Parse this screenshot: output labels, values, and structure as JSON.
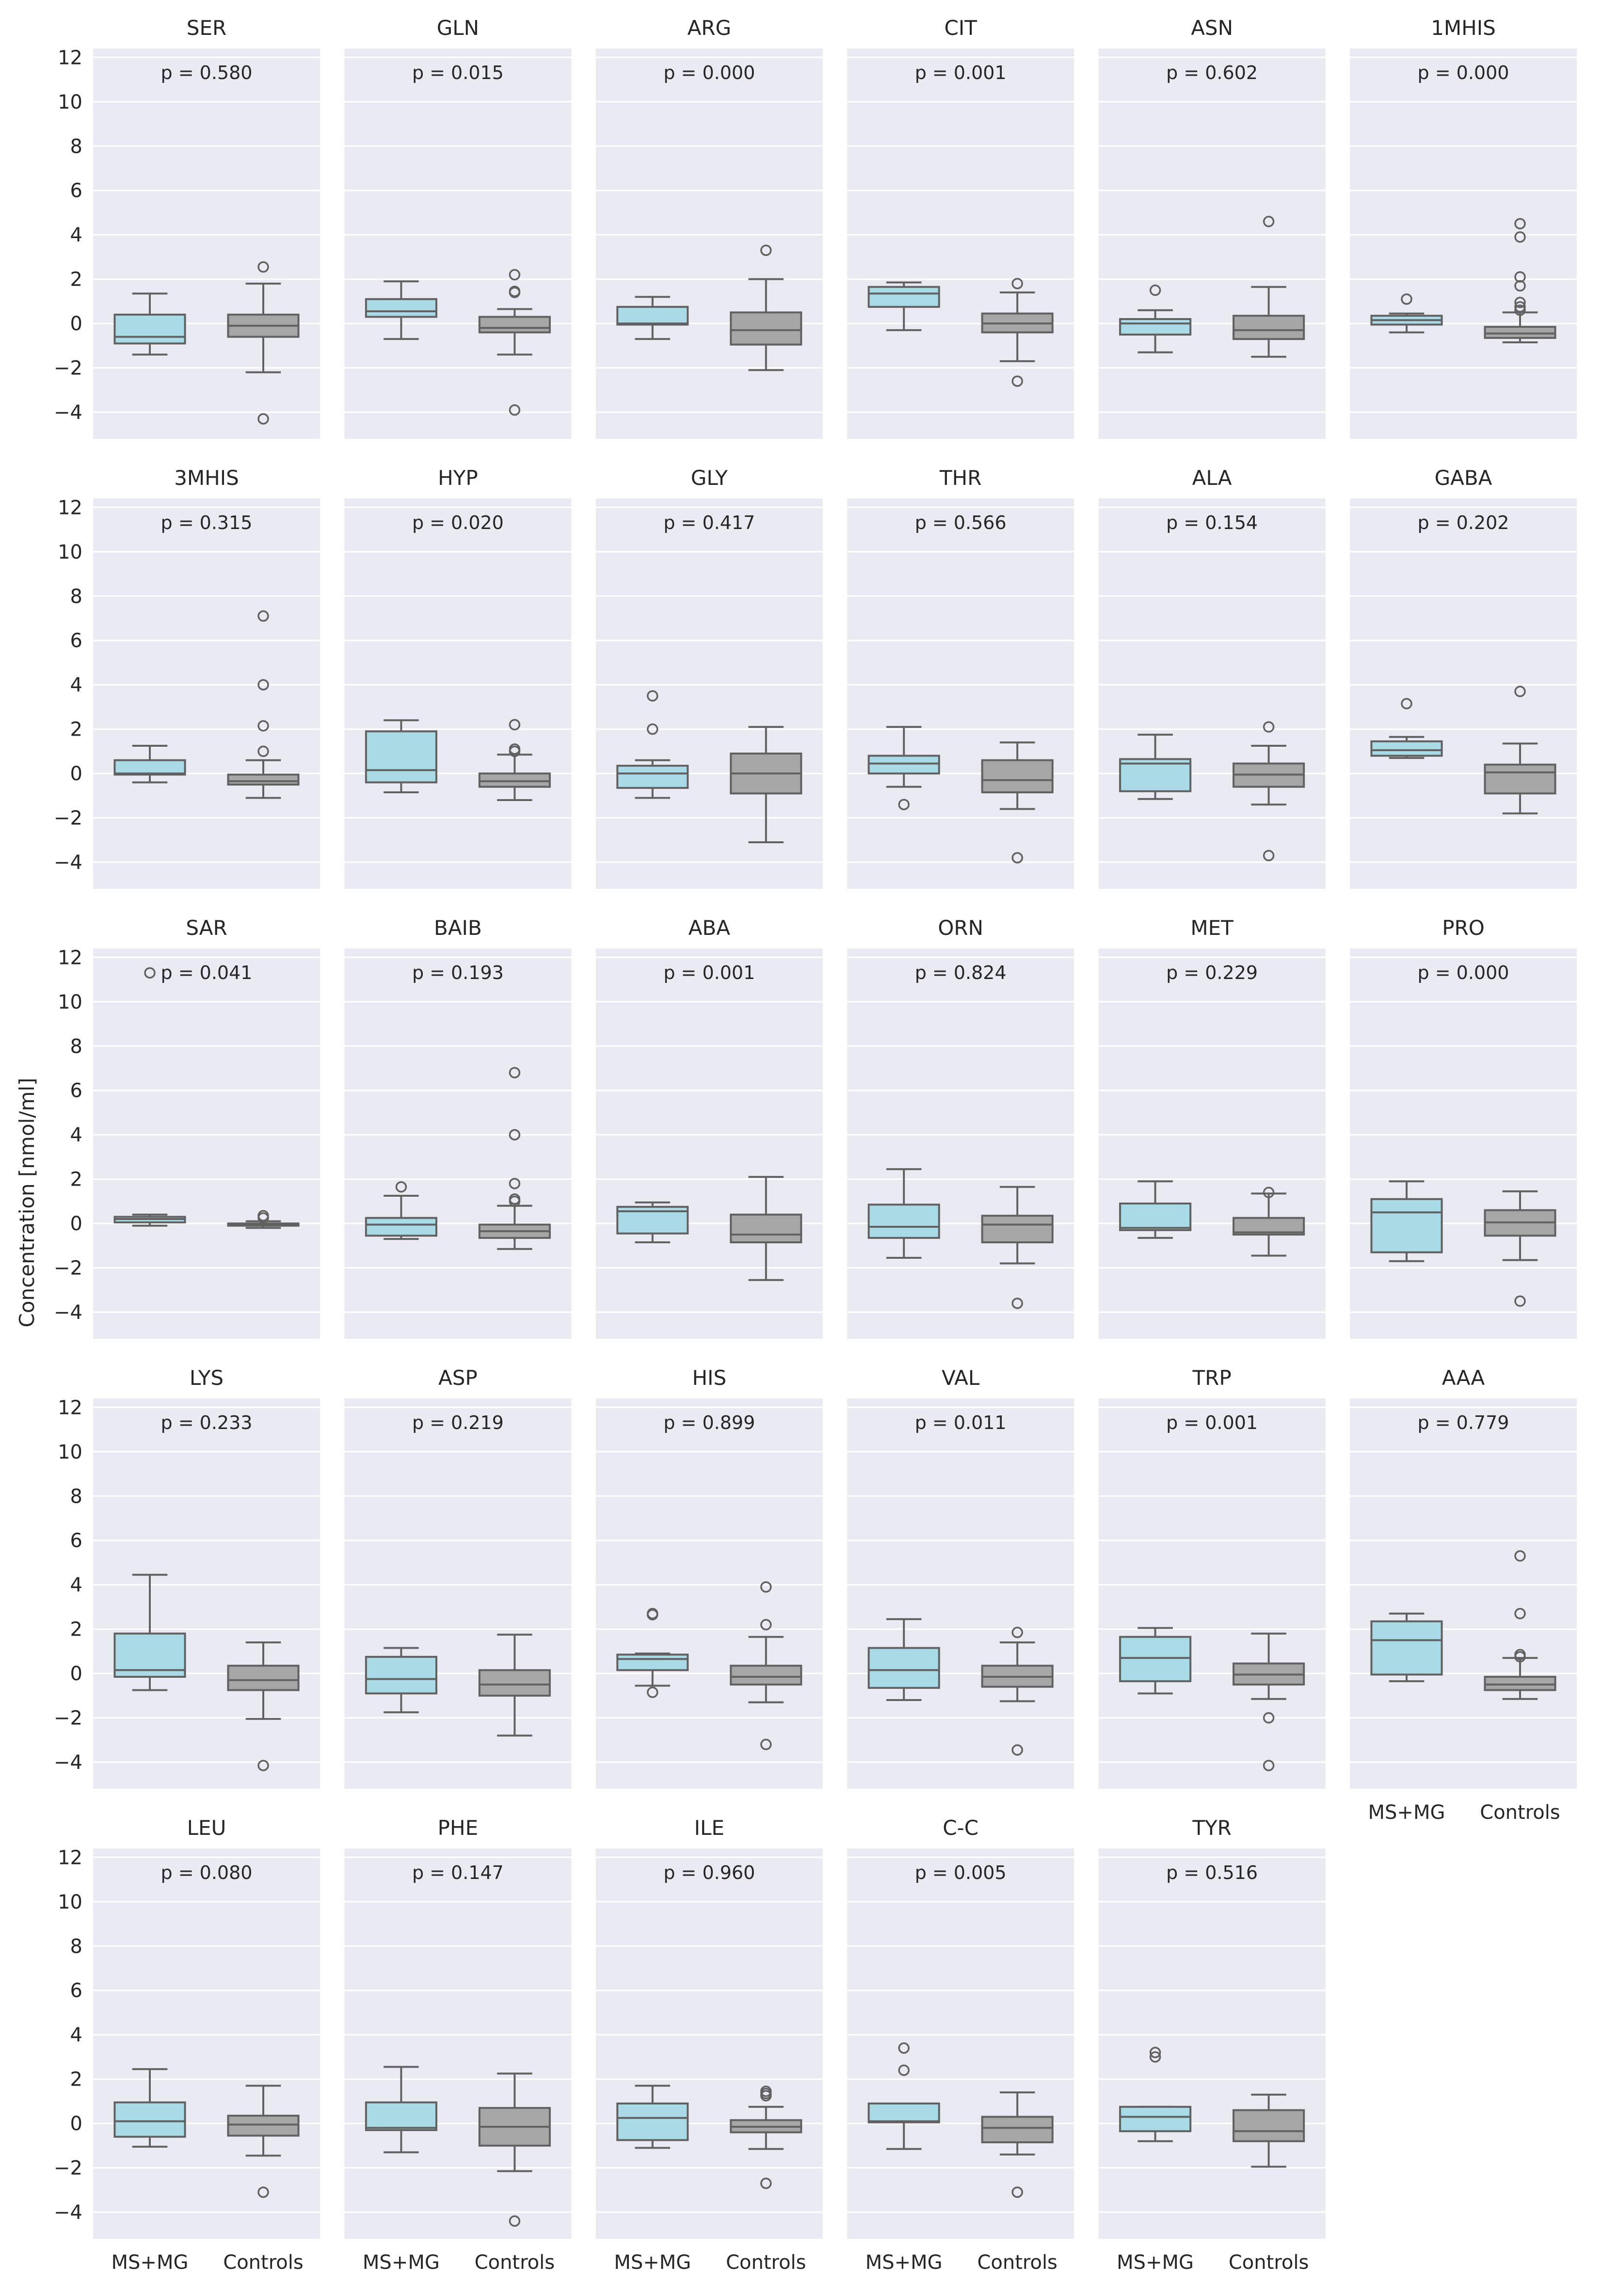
{
  "chart_data": {
    "type": "box",
    "ylabel": "Concentration [nmol/ml]",
    "ylim": [
      -5.2,
      12.4
    ],
    "yticks": [
      -4,
      -2,
      0,
      2,
      4,
      6,
      8,
      10,
      12
    ],
    "groups": [
      "MS+MG",
      "Controls"
    ],
    "colors": {
      "MS+MG": "#a9dbe6",
      "Controls": "#a6a6a6",
      "background": "#eaeaf2",
      "edge": "#616161"
    },
    "grid": true,
    "panels": [
      {
        "name": "SER",
        "p": "p = 0.580",
        "boxes": [
          {
            "group": "MS+MG",
            "whislo": -1.4,
            "q1": -0.9,
            "med": -0.6,
            "q3": 0.4,
            "whishi": 1.35,
            "fliers": []
          },
          {
            "group": "Controls",
            "whislo": -2.2,
            "q1": -0.6,
            "med": -0.1,
            "q3": 0.4,
            "whishi": 1.8,
            "fliers": [
              2.55,
              -4.3
            ]
          }
        ]
      },
      {
        "name": "GLN",
        "p": "p = 0.015",
        "boxes": [
          {
            "group": "MS+MG",
            "whislo": -0.7,
            "q1": 0.3,
            "med": 0.55,
            "q3": 1.1,
            "whishi": 1.9,
            "fliers": []
          },
          {
            "group": "Controls",
            "whislo": -1.4,
            "q1": -0.4,
            "med": -0.2,
            "q3": 0.3,
            "whishi": 0.65,
            "fliers": [
              2.2,
              1.45,
              1.4,
              -3.9
            ]
          }
        ]
      },
      {
        "name": "ARG",
        "p": "p = 0.000",
        "boxes": [
          {
            "group": "MS+MG",
            "whislo": -0.7,
            "q1": -0.05,
            "med": 0.0,
            "q3": 0.75,
            "whishi": 1.2,
            "fliers": []
          },
          {
            "group": "Controls",
            "whislo": -2.1,
            "q1": -0.95,
            "med": -0.3,
            "q3": 0.5,
            "whishi": 2.0,
            "fliers": [
              3.3
            ]
          }
        ]
      },
      {
        "name": "CIT",
        "p": "p = 0.001",
        "boxes": [
          {
            "group": "MS+MG",
            "whislo": -0.3,
            "q1": 0.75,
            "med": 1.35,
            "q3": 1.65,
            "whishi": 1.85,
            "fliers": []
          },
          {
            "group": "Controls",
            "whislo": -1.7,
            "q1": -0.4,
            "med": 0.0,
            "q3": 0.45,
            "whishi": 1.4,
            "fliers": [
              1.8,
              -2.6
            ]
          }
        ]
      },
      {
        "name": "ASN",
        "p": "p = 0.602",
        "boxes": [
          {
            "group": "MS+MG",
            "whislo": -1.3,
            "q1": -0.5,
            "med": 0.0,
            "q3": 0.2,
            "whishi": 0.6,
            "fliers": [
              1.5
            ]
          },
          {
            "group": "Controls",
            "whislo": -1.5,
            "q1": -0.7,
            "med": -0.3,
            "q3": 0.35,
            "whishi": 1.65,
            "fliers": [
              4.6
            ]
          }
        ]
      },
      {
        "name": "1MHIS",
        "p": "p = 0.000",
        "boxes": [
          {
            "group": "MS+MG",
            "whislo": -0.4,
            "q1": -0.05,
            "med": 0.15,
            "q3": 0.35,
            "whishi": 0.45,
            "fliers": [
              1.1
            ]
          },
          {
            "group": "Controls",
            "whislo": -0.85,
            "q1": -0.65,
            "med": -0.45,
            "q3": -0.15,
            "whishi": 0.5,
            "fliers": [
              4.5,
              3.9,
              2.1,
              1.7,
              0.95,
              0.75,
              0.6
            ]
          }
        ]
      },
      {
        "name": "3MHIS",
        "p": "p = 0.315",
        "boxes": [
          {
            "group": "MS+MG",
            "whislo": -0.4,
            "q1": -0.05,
            "med": 0.0,
            "q3": 0.6,
            "whishi": 1.25,
            "fliers": []
          },
          {
            "group": "Controls",
            "whislo": -1.1,
            "q1": -0.5,
            "med": -0.35,
            "q3": -0.05,
            "whishi": 0.6,
            "fliers": [
              7.1,
              4.0,
              2.15,
              1.0
            ]
          }
        ]
      },
      {
        "name": "HYP",
        "p": "p = 0.020",
        "boxes": [
          {
            "group": "MS+MG",
            "whislo": -0.85,
            "q1": -0.4,
            "med": 0.15,
            "q3": 1.9,
            "whishi": 2.4,
            "fliers": []
          },
          {
            "group": "Controls",
            "whislo": -1.2,
            "q1": -0.6,
            "med": -0.35,
            "q3": 0.0,
            "whishi": 0.85,
            "fliers": [
              2.2,
              1.1,
              1.0
            ]
          }
        ]
      },
      {
        "name": "GLY",
        "p": "p = 0.417",
        "boxes": [
          {
            "group": "MS+MG",
            "whislo": -1.1,
            "q1": -0.65,
            "med": 0.0,
            "q3": 0.35,
            "whishi": 0.6,
            "fliers": [
              3.5,
              2.0
            ]
          },
          {
            "group": "Controls",
            "whislo": -3.1,
            "q1": -0.9,
            "med": 0.0,
            "q3": 0.9,
            "whishi": 2.1,
            "fliers": []
          }
        ]
      },
      {
        "name": "THR",
        "p": "p = 0.566",
        "boxes": [
          {
            "group": "MS+MG",
            "whislo": -0.6,
            "q1": 0.0,
            "med": 0.45,
            "q3": 0.8,
            "whishi": 2.1,
            "fliers": [
              -1.4
            ]
          },
          {
            "group": "Controls",
            "whislo": -1.6,
            "q1": -0.85,
            "med": -0.3,
            "q3": 0.6,
            "whishi": 1.4,
            "fliers": [
              -3.8
            ]
          }
        ]
      },
      {
        "name": "ALA",
        "p": "p = 0.154",
        "boxes": [
          {
            "group": "MS+MG",
            "whislo": -1.15,
            "q1": -0.8,
            "med": 0.45,
            "q3": 0.65,
            "whishi": 1.75,
            "fliers": []
          },
          {
            "group": "Controls",
            "whislo": -1.4,
            "q1": -0.6,
            "med": -0.05,
            "q3": 0.45,
            "whishi": 1.25,
            "fliers": [
              2.1,
              -3.7
            ]
          }
        ]
      },
      {
        "name": "GABA",
        "p": "p = 0.202",
        "boxes": [
          {
            "group": "MS+MG",
            "whislo": 0.7,
            "q1": 0.8,
            "med": 1.05,
            "q3": 1.45,
            "whishi": 1.65,
            "fliers": [
              3.15
            ]
          },
          {
            "group": "Controls",
            "whislo": -1.8,
            "q1": -0.9,
            "med": 0.05,
            "q3": 0.4,
            "whishi": 1.35,
            "fliers": [
              3.7
            ]
          }
        ]
      },
      {
        "name": "SAR",
        "p": "p = 0.041",
        "boxes": [
          {
            "group": "MS+MG",
            "whislo": -0.1,
            "q1": 0.05,
            "med": 0.2,
            "q3": 0.3,
            "whishi": 0.4,
            "fliers": [
              11.3
            ]
          },
          {
            "group": "Controls",
            "whislo": -0.2,
            "q1": -0.1,
            "med": -0.05,
            "q3": 0.0,
            "whishi": 0.1,
            "fliers": [
              0.35,
              0.25
            ]
          }
        ]
      },
      {
        "name": "BAIB",
        "p": "p = 0.193",
        "boxes": [
          {
            "group": "MS+MG",
            "whislo": -0.7,
            "q1": -0.55,
            "med": -0.05,
            "q3": 0.25,
            "whishi": 1.25,
            "fliers": [
              1.65
            ]
          },
          {
            "group": "Controls",
            "whislo": -1.15,
            "q1": -0.65,
            "med": -0.35,
            "q3": -0.05,
            "whishi": 0.8,
            "fliers": [
              6.8,
              4.0,
              1.8,
              1.1,
              1.0
            ]
          }
        ]
      },
      {
        "name": "ABA",
        "p": "p = 0.001",
        "boxes": [
          {
            "group": "MS+MG",
            "whislo": -0.85,
            "q1": -0.45,
            "med": 0.55,
            "q3": 0.75,
            "whishi": 0.95,
            "fliers": []
          },
          {
            "group": "Controls",
            "whislo": -2.55,
            "q1": -0.85,
            "med": -0.5,
            "q3": 0.4,
            "whishi": 2.1,
            "fliers": []
          }
        ]
      },
      {
        "name": "ORN",
        "p": "p = 0.824",
        "boxes": [
          {
            "group": "MS+MG",
            "whislo": -1.55,
            "q1": -0.65,
            "med": -0.15,
            "q3": 0.85,
            "whishi": 2.45,
            "fliers": []
          },
          {
            "group": "Controls",
            "whislo": -1.8,
            "q1": -0.85,
            "med": -0.05,
            "q3": 0.35,
            "whishi": 1.65,
            "fliers": [
              -3.6
            ]
          }
        ]
      },
      {
        "name": "MET",
        "p": "p = 0.229",
        "boxes": [
          {
            "group": "MS+MG",
            "whislo": -0.65,
            "q1": -0.3,
            "med": -0.2,
            "q3": 0.9,
            "whishi": 1.9,
            "fliers": []
          },
          {
            "group": "Controls",
            "whislo": -1.45,
            "q1": -0.5,
            "med": -0.4,
            "q3": 0.25,
            "whishi": 1.35,
            "fliers": [
              1.4
            ]
          }
        ]
      },
      {
        "name": "PRO",
        "p": "p = 0.000",
        "boxes": [
          {
            "group": "MS+MG",
            "whislo": -1.7,
            "q1": -1.3,
            "med": 0.5,
            "q3": 1.1,
            "whishi": 1.9,
            "fliers": []
          },
          {
            "group": "Controls",
            "whislo": -1.65,
            "q1": -0.55,
            "med": 0.05,
            "q3": 0.6,
            "whishi": 1.45,
            "fliers": [
              -3.5
            ]
          }
        ]
      },
      {
        "name": "LYS",
        "p": "p = 0.233",
        "boxes": [
          {
            "group": "MS+MG",
            "whislo": -0.75,
            "q1": -0.15,
            "med": 0.15,
            "q3": 1.8,
            "whishi": 4.45,
            "fliers": []
          },
          {
            "group": "Controls",
            "whislo": -2.05,
            "q1": -0.75,
            "med": -0.3,
            "q3": 0.35,
            "whishi": 1.4,
            "fliers": [
              -4.15
            ]
          }
        ]
      },
      {
        "name": "ASP",
        "p": "p = 0.219",
        "boxes": [
          {
            "group": "MS+MG",
            "whislo": -1.75,
            "q1": -0.9,
            "med": -0.25,
            "q3": 0.75,
            "whishi": 1.15,
            "fliers": []
          },
          {
            "group": "Controls",
            "whislo": -2.8,
            "q1": -1.0,
            "med": -0.5,
            "q3": 0.15,
            "whishi": 1.75,
            "fliers": []
          }
        ]
      },
      {
        "name": "HIS",
        "p": "p = 0.899",
        "boxes": [
          {
            "group": "MS+MG",
            "whislo": -0.55,
            "q1": 0.15,
            "med": 0.65,
            "q3": 0.85,
            "whishi": 0.9,
            "fliers": [
              2.7,
              2.65,
              -0.85
            ]
          },
          {
            "group": "Controls",
            "whislo": -1.3,
            "q1": -0.5,
            "med": -0.15,
            "q3": 0.35,
            "whishi": 1.65,
            "fliers": [
              3.9,
              2.2,
              -3.2
            ]
          }
        ]
      },
      {
        "name": "VAL",
        "p": "p = 0.011",
        "boxes": [
          {
            "group": "MS+MG",
            "whislo": -1.2,
            "q1": -0.65,
            "med": 0.15,
            "q3": 1.15,
            "whishi": 2.45,
            "fliers": []
          },
          {
            "group": "Controls",
            "whislo": -1.25,
            "q1": -0.6,
            "med": -0.15,
            "q3": 0.35,
            "whishi": 1.4,
            "fliers": [
              1.85,
              -3.45
            ]
          }
        ]
      },
      {
        "name": "TRP",
        "p": "p = 0.001",
        "boxes": [
          {
            "group": "MS+MG",
            "whislo": -0.9,
            "q1": -0.35,
            "med": 0.7,
            "q3": 1.65,
            "whishi": 2.05,
            "fliers": []
          },
          {
            "group": "Controls",
            "whislo": -1.15,
            "q1": -0.5,
            "med": -0.05,
            "q3": 0.45,
            "whishi": 1.8,
            "fliers": [
              -2.0,
              -4.15
            ]
          }
        ]
      },
      {
        "name": "AAA",
        "p": "p = 0.779",
        "boxes": [
          {
            "group": "MS+MG",
            "whislo": -0.35,
            "q1": -0.05,
            "med": 1.5,
            "q3": 2.35,
            "whishi": 2.7,
            "fliers": []
          },
          {
            "group": "Controls",
            "whislo": -1.15,
            "q1": -0.75,
            "med": -0.5,
            "q3": -0.15,
            "whishi": 0.7,
            "fliers": [
              5.3,
              2.7,
              0.85,
              0.75
            ]
          }
        ]
      },
      {
        "name": "LEU",
        "p": "p = 0.080",
        "boxes": [
          {
            "group": "MS+MG",
            "whislo": -1.05,
            "q1": -0.6,
            "med": 0.1,
            "q3": 0.95,
            "whishi": 2.45,
            "fliers": []
          },
          {
            "group": "Controls",
            "whislo": -1.45,
            "q1": -0.55,
            "med": -0.05,
            "q3": 0.35,
            "whishi": 1.7,
            "fliers": [
              -3.1
            ]
          }
        ]
      },
      {
        "name": "PHE",
        "p": "p = 0.147",
        "boxes": [
          {
            "group": "MS+MG",
            "whislo": -1.3,
            "q1": -0.3,
            "med": -0.2,
            "q3": 0.95,
            "whishi": 2.55,
            "fliers": []
          },
          {
            "group": "Controls",
            "whislo": -2.15,
            "q1": -1.0,
            "med": -0.15,
            "q3": 0.7,
            "whishi": 2.25,
            "fliers": [
              -4.4
            ]
          }
        ]
      },
      {
        "name": "ILE",
        "p": "p = 0.960",
        "boxes": [
          {
            "group": "MS+MG",
            "whislo": -1.1,
            "q1": -0.75,
            "med": 0.25,
            "q3": 0.9,
            "whishi": 1.7,
            "fliers": []
          },
          {
            "group": "Controls",
            "whislo": -1.15,
            "q1": -0.4,
            "med": -0.15,
            "q3": 0.15,
            "whishi": 0.75,
            "fliers": [
              1.45,
              1.35,
              1.25,
              -2.7
            ]
          }
        ]
      },
      {
        "name": "C-C",
        "p": "p = 0.005",
        "boxes": [
          {
            "group": "MS+MG",
            "whislo": -1.15,
            "q1": 0.05,
            "med": 0.1,
            "q3": 0.9,
            "whishi": 0.9,
            "fliers": [
              3.4,
              2.4
            ]
          },
          {
            "group": "Controls",
            "whislo": -1.4,
            "q1": -0.85,
            "med": -0.2,
            "q3": 0.3,
            "whishi": 1.4,
            "fliers": [
              -3.1
            ]
          }
        ]
      },
      {
        "name": "TYR",
        "p": "p = 0.516",
        "boxes": [
          {
            "group": "MS+MG",
            "whislo": -0.8,
            "q1": -0.35,
            "med": 0.3,
            "q3": 0.75,
            "whishi": 0.75,
            "fliers": [
              3.2,
              3.0
            ]
          },
          {
            "group": "Controls",
            "whislo": -1.95,
            "q1": -0.8,
            "med": -0.35,
            "q3": 0.6,
            "whishi": 1.3,
            "fliers": []
          }
        ]
      }
    ]
  }
}
